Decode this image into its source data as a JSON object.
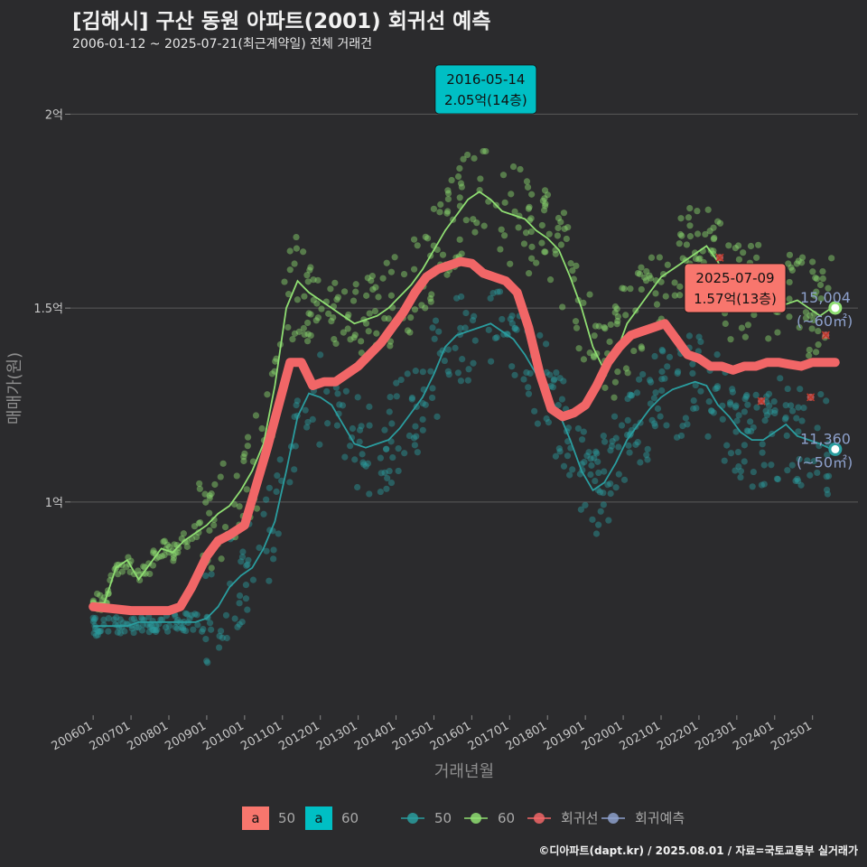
{
  "title": "[김해시] 구산 동원 아파트(2001) 회귀선 예측",
  "subtitle": "2006-01-12 ~ 2025-07-21(최근계약일) 전체 거래건",
  "credit": "©디아파트(dapt.kr) / 2025.08.01 / 자료=국토교통부 실거래가",
  "chart_data": {
    "type": "scatter",
    "xlabel": "거래년월",
    "ylabel": "매매가(원)",
    "x_ticks": [
      "200601",
      "200701",
      "200801",
      "200901",
      "201001",
      "201101",
      "201201",
      "201301",
      "201401",
      "201501",
      "201601",
      "201701",
      "201801",
      "201901",
      "202001",
      "202101",
      "202201",
      "202301",
      "202401",
      "202501"
    ],
    "y_ticks": [
      {
        "value": 10000,
        "label": "1억"
      },
      {
        "value": 15000,
        "label": "1.5억"
      },
      {
        "value": 20000,
        "label": "2억"
      }
    ],
    "ylim": [
      4500,
      21500
    ],
    "xlim": [
      2005.4,
      2026.2
    ],
    "grid": true,
    "legend_position": "bottom",
    "colors": {
      "s50": "#2a9d9f",
      "s60": "#8fde72",
      "reg": "#f16667",
      "pred": "#8da0cb"
    },
    "legend": {
      "fill_keys": [
        {
          "key": "a",
          "label": "50",
          "color": "#f8766d"
        },
        {
          "key": "a",
          "label": "60",
          "color": "#00bfc4"
        }
      ],
      "line_keys": [
        {
          "label": "50",
          "color": "#2a9d9f"
        },
        {
          "label": "60",
          "color": "#8fde72"
        },
        {
          "label": "회귀선",
          "color": "#f16667"
        },
        {
          "label": "회귀예측",
          "color": "#8da0cb"
        }
      ]
    },
    "series": [
      {
        "name": "60",
        "x": [
          2006.0,
          2006.3,
          2006.6,
          2006.9,
          2007.2,
          2007.5,
          2007.8,
          2008.1,
          2008.4,
          2008.7,
          2009.0,
          2009.3,
          2009.6,
          2009.9,
          2010.2,
          2010.5,
          2010.8,
          2011.1,
          2011.4,
          2011.7,
          2012.0,
          2012.3,
          2012.6,
          2012.9,
          2013.2,
          2013.5,
          2013.8,
          2014.1,
          2014.4,
          2014.7,
          2015.0,
          2015.3,
          2015.6,
          2015.9,
          2016.2,
          2016.5,
          2016.8,
          2017.1,
          2017.4,
          2017.7,
          2018.0,
          2018.3,
          2018.6,
          2018.9,
          2019.2,
          2019.5,
          2019.8,
          2020.1,
          2020.4,
          2020.7,
          2021.0,
          2021.3,
          2021.6,
          2021.9,
          2022.2,
          2022.5,
          2022.8,
          2023.1,
          2023.4,
          2023.7,
          2024.0,
          2024.3,
          2024.6,
          2024.9,
          2025.2,
          2025.5
        ],
        "y": [
          7400,
          7400,
          8300,
          8500,
          8000,
          8400,
          8800,
          8700,
          9000,
          9200,
          9400,
          9700,
          9900,
          10300,
          10800,
          11500,
          13000,
          15000,
          15700,
          15400,
          15200,
          15000,
          14800,
          14600,
          14700,
          14800,
          15000,
          15300,
          15600,
          16000,
          16500,
          17000,
          17400,
          17800,
          18000,
          17800,
          17500,
          17400,
          17300,
          17000,
          16800,
          16500,
          15800,
          15000,
          14000,
          13400,
          13800,
          14600,
          15000,
          15400,
          15800,
          16000,
          16200,
          16400,
          16600,
          16200,
          15500,
          15400,
          15600,
          15300,
          15200,
          15100,
          15200,
          15000,
          14800,
          15004
        ]
      },
      {
        "name": "50",
        "x": [
          2006.0,
          2006.3,
          2006.6,
          2006.9,
          2007.2,
          2007.5,
          2007.8,
          2008.1,
          2008.4,
          2008.7,
          2009.0,
          2009.3,
          2009.6,
          2009.9,
          2010.2,
          2010.5,
          2010.8,
          2011.1,
          2011.4,
          2011.7,
          2012.0,
          2012.3,
          2012.6,
          2012.9,
          2013.2,
          2013.5,
          2013.8,
          2014.1,
          2014.4,
          2014.7,
          2015.0,
          2015.3,
          2015.6,
          2015.9,
          2016.2,
          2016.5,
          2016.8,
          2017.1,
          2017.4,
          2017.7,
          2018.0,
          2018.3,
          2018.6,
          2018.9,
          2019.2,
          2019.5,
          2019.8,
          2020.1,
          2020.4,
          2020.7,
          2021.0,
          2021.3,
          2021.6,
          2021.9,
          2022.2,
          2022.5,
          2022.8,
          2023.1,
          2023.4,
          2023.7,
          2024.0,
          2024.3,
          2024.6,
          2024.9,
          2025.2,
          2025.5
        ],
        "y": [
          6800,
          6800,
          6800,
          6800,
          6900,
          6900,
          6900,
          6900,
          6900,
          6900,
          7000,
          7300,
          7800,
          8100,
          8300,
          8800,
          9500,
          10800,
          12200,
          12800,
          12700,
          12500,
          12000,
          11500,
          11400,
          11500,
          11600,
          11900,
          12300,
          12700,
          13300,
          14000,
          14300,
          14400,
          14500,
          14600,
          14400,
          14200,
          13800,
          13300,
          12800,
          12300,
          11600,
          10800,
          10300,
          10500,
          11000,
          11600,
          12000,
          12400,
          12700,
          12900,
          13000,
          13100,
          13000,
          12500,
          12200,
          11800,
          11600,
          11600,
          11800,
          12000,
          11700,
          11600,
          11500,
          11360
        ]
      },
      {
        "name": "회귀선",
        "x": [
          2006.0,
          2006.5,
          2007.0,
          2007.5,
          2008.0,
          2008.3,
          2008.6,
          2009.0,
          2009.3,
          2009.6,
          2010.0,
          2010.3,
          2010.6,
          2010.9,
          2011.2,
          2011.5,
          2011.8,
          2012.1,
          2012.4,
          2012.7,
          2013.0,
          2013.3,
          2013.6,
          2013.9,
          2014.2,
          2014.5,
          2014.8,
          2015.1,
          2015.4,
          2015.7,
          2016.0,
          2016.3,
          2016.6,
          2016.9,
          2017.2,
          2017.5,
          2017.8,
          2018.1,
          2018.4,
          2018.7,
          2019.0,
          2019.3,
          2019.6,
          2019.9,
          2020.2,
          2020.5,
          2020.8,
          2021.1,
          2021.4,
          2021.7,
          2022.0,
          2022.3,
          2022.6,
          2022.9,
          2023.2,
          2023.5,
          2023.8,
          2024.1,
          2024.4,
          2024.7,
          2025.0,
          2025.3,
          2025.6
        ],
        "y": [
          7300,
          7250,
          7200,
          7200,
          7200,
          7300,
          7800,
          8600,
          9000,
          9150,
          9400,
          10400,
          11400,
          12500,
          13600,
          13600,
          13000,
          13100,
          13100,
          13300,
          13500,
          13800,
          14100,
          14500,
          14900,
          15400,
          15800,
          16000,
          16100,
          16200,
          16150,
          15900,
          15800,
          15700,
          15400,
          14500,
          13300,
          12400,
          12200,
          12300,
          12500,
          13000,
          13600,
          14000,
          14300,
          14400,
          14500,
          14600,
          14200,
          13800,
          13700,
          13500,
          13500,
          13400,
          13500,
          13500,
          13600,
          13600,
          13550,
          13500,
          13600,
          13600,
          13600
        ]
      },
      {
        "name": "회귀예측",
        "x": [
          2022.15,
          2022.35,
          2022.55,
          2023.65,
          2024.95,
          2025.35
        ],
        "y": [
          15500,
          15900,
          16300,
          12600,
          12700,
          14300
        ]
      }
    ],
    "annotations": [
      {
        "date": "2016-05-14",
        "value": "2.05억(14층)",
        "x": 2016.37,
        "y": 20500,
        "color": "#00bfc4"
      },
      {
        "date": "2025-07-09",
        "value": "1.57억(13층)",
        "x": 2025.52,
        "y": 15700,
        "color": "#f8766d"
      }
    ],
    "end_labels": [
      {
        "value": "15,004",
        "unit": "(~60㎡)",
        "x": 2025.6,
        "y": 15004,
        "color": "#8fde72"
      },
      {
        "value": "11,360",
        "unit": "(~50㎡)",
        "x": 2025.6,
        "y": 11360,
        "color": "#2a9d9f"
      }
    ]
  }
}
